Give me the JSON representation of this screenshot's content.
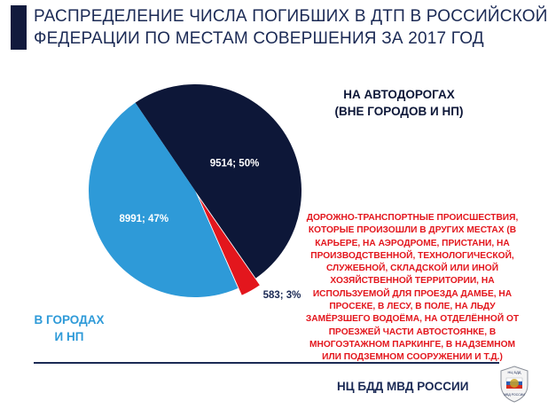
{
  "title": {
    "line1": "РАСПРЕДЕЛЕНИЕ ЧИСЛА ПОГИБШИХ В ДТП В РОССИЙСКОЙ",
    "line2": "ФЕДЕРАЦИИ ПО МЕСТАМ СОВЕРШЕНИЯ ЗА 2017 ГОД"
  },
  "chart_data": {
    "type": "pie",
    "title": "РАСПРЕДЕЛЕНИЕ ЧИСЛА ПОГИБШИХ В ДТП В РОССИЙСКОЙ ФЕДЕРАЦИИ ПО МЕСТАМ СОВЕРШЕНИЯ ЗА 2017 ГОД",
    "slices": [
      {
        "key": "roads",
        "value": 9514,
        "percent": 50,
        "data_label": "9514; 50%",
        "color": "#0d1738",
        "label_color": "#ffffff"
      },
      {
        "key": "other",
        "value": 583,
        "percent": 3,
        "data_label": "583; 3%",
        "color": "#e3161d",
        "label_color": "#1b2a55"
      },
      {
        "key": "cities",
        "value": 8991,
        "percent": 47,
        "data_label": "8991; 47%",
        "color": "#2e9ad8",
        "label_color": "#ffffff"
      }
    ]
  },
  "categories": {
    "roads": [
      "НА АВТОДОРОГАХ",
      "(ВНЕ ГОРОДОВ И НП)"
    ],
    "cities": [
      "В ГОРОДАХ",
      "И НП"
    ],
    "other": [
      "ДОРОЖНО-ТРАНСПОРТНЫЕ ПРОИСШЕСТВИЯ,",
      "КОТОРЫЕ ПРОИЗОШЛИ В ДРУГИХ МЕСТАХ (В",
      "КАРЬЕРЕ, НА АЭРОДРОМЕ, ПРИСТАНИ, НА",
      "ПРОИЗВОДСТВЕННОЙ, ТЕХНОЛОГИЧЕСКОЙ,",
      "СЛУЖЕБНОЙ, СКЛАДСКОЙ ИЛИ ИНОЙ",
      "ХОЗЯЙСТВЕННОЙ ТЕРРИТОРИИ, НА",
      "ИСПОЛЬЗУЕМОЙ ДЛЯ ПРОЕЗДА ДАМБЕ, НА",
      "ПРОСЕКЕ, В ЛЕСУ, В ПОЛЕ, НА ЛЬДУ",
      "ЗАМЁРЗШЕГО ВОДОЁМА, НА ОТДЕЛЁННОЙ ОТ",
      "ПРОЕЗЖЕЙ ЧАСТИ АВТОСТОЯНКЕ, В",
      "МНОГОЭТАЖНОМ ПАРКИНГЕ, В НАДЗЕМНОМ",
      "ИЛИ ПОДЗЕМНОМ СООРУЖЕНИИ И Т.Д.)"
    ]
  },
  "footer": {
    "org": "НЦ БДД МВД РОССИИ",
    "emblem_text": [
      "НЦ БДД",
      "МВД РОССИИ"
    ]
  },
  "colors": {
    "accent": "#121a3d",
    "title": "#1b2a55"
  }
}
